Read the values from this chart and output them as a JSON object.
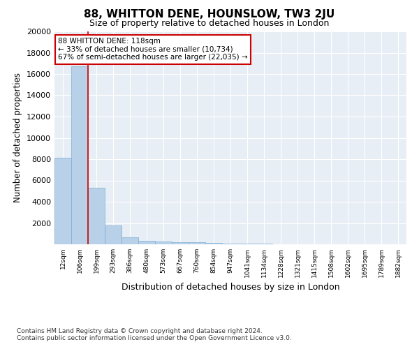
{
  "title": "88, WHITTON DENE, HOUNSLOW, TW3 2JU",
  "subtitle": "Size of property relative to detached houses in London",
  "xlabel": "Distribution of detached houses by size in London",
  "ylabel": "Number of detached properties",
  "bar_color": "#b8d0e8",
  "bar_edge_color": "#7aafd4",
  "background_color": "#e8eef5",
  "grid_color": "#ffffff",
  "categories": [
    "12sqm",
    "106sqm",
    "199sqm",
    "293sqm",
    "386sqm",
    "480sqm",
    "573sqm",
    "667sqm",
    "760sqm",
    "854sqm",
    "947sqm",
    "1041sqm",
    "1134sqm",
    "1228sqm",
    "1321sqm",
    "1415sqm",
    "1508sqm",
    "1602sqm",
    "1695sqm",
    "1789sqm",
    "1882sqm"
  ],
  "values": [
    8100,
    16700,
    5300,
    1750,
    650,
    350,
    280,
    210,
    185,
    120,
    70,
    50,
    35,
    25,
    20,
    15,
    12,
    10,
    8,
    7,
    5
  ],
  "ylim": [
    0,
    20000
  ],
  "yticks": [
    0,
    2000,
    4000,
    6000,
    8000,
    10000,
    12000,
    14000,
    16000,
    18000,
    20000
  ],
  "property_line_x": 1.5,
  "property_line_color": "#cc0000",
  "annotation_line1": "88 WHITTON DENE: 118sqm",
  "annotation_line2": "← 33% of detached houses are smaller (10,734)",
  "annotation_line3": "67% of semi-detached houses are larger (22,035) →",
  "annotation_box_color": "#ffffff",
  "annotation_box_edge": "#cc0000",
  "footer_line1": "Contains HM Land Registry data © Crown copyright and database right 2024.",
  "footer_line2": "Contains public sector information licensed under the Open Government Licence v3.0.",
  "fig_bg": "#ffffff",
  "title_fontsize": 11,
  "subtitle_fontsize": 9
}
